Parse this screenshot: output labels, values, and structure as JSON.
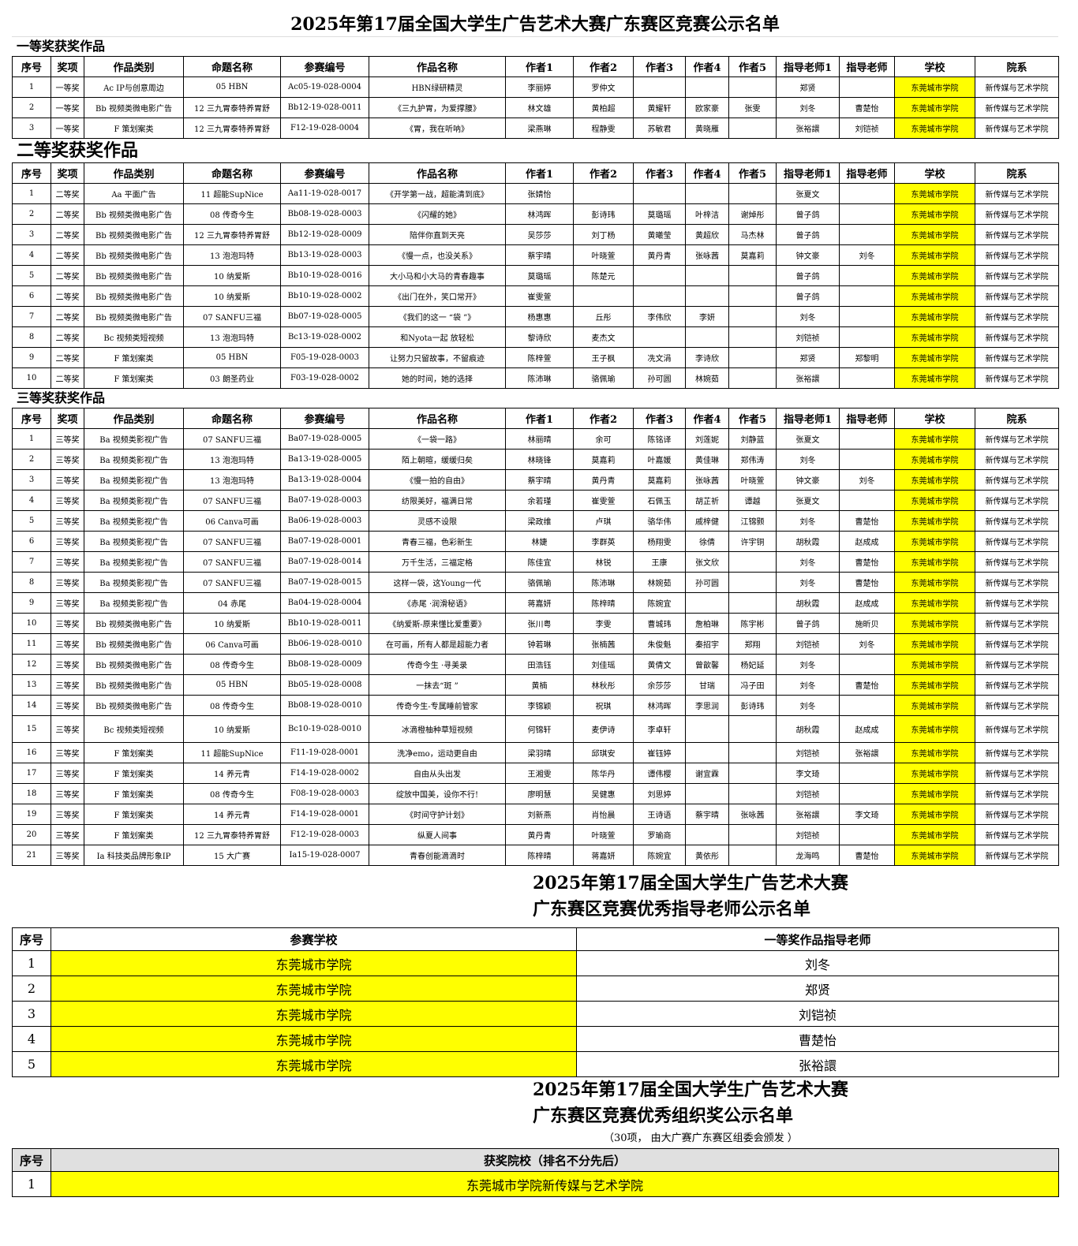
{
  "title": "2025年第17届全国大学生广告艺术大赛广东赛区竞赛公示名单",
  "columns": [
    "序号",
    "奖项",
    "作品类别",
    "命题名称",
    "参赛编号",
    "作品名称",
    "作者1",
    "作者2",
    "作者3",
    "作者4",
    "作者5",
    "指导老师1",
    "指导老师",
    "学校",
    "院系"
  ],
  "sections": [
    {
      "label": "一等奖获奖作品",
      "rows": [
        [
          1,
          "一等奖",
          "Ac IP与创意周边",
          "05 HBN",
          "Ac05-19-028-0004",
          "HBN绿研精灵",
          "李丽婷",
          "罗仲文",
          null,
          null,
          null,
          "郑贤",
          null,
          "东莞城市学院",
          "新传媒与艺术学院"
        ],
        [
          2,
          "一等奖",
          "Bb 视频类微电影广告",
          "12 三九胃泰特养胃舒",
          "Bb12-19-028-0011",
          "《三九护胃，为爱撑腰》",
          "林文雄",
          "黄柏超",
          "黄耀轩",
          "欧家豪",
          "张雯",
          "刘冬",
          "曹楚怡",
          "东莞城市学院",
          "新传媒与艺术学院"
        ],
        [
          3,
          "一等奖",
          "F 策划案类",
          "12 三九胃泰特养胃舒",
          "F12-19-028-0004",
          "《胃，我在听呐》",
          "梁燕琳",
          "程静雯",
          "苏敏君",
          "黄晓雁",
          null,
          "张裕譞",
          "刘铠祯",
          "东莞城市学院",
          "新传媒与艺术学院"
        ]
      ]
    },
    {
      "label": "二等奖获奖作品",
      "rows": [
        [
          1,
          "二等奖",
          "Aa 平面广告",
          "11 超能SupNice",
          "Aa11-19-028-0017",
          "《开学第一战，超能清到底》",
          "张婧怡",
          null,
          null,
          null,
          null,
          "张夏文",
          null,
          "东莞城市学院",
          "新传媒与艺术学院"
        ],
        [
          2,
          "二等奖",
          "Bb 视频类微电影广告",
          "08 传奇今生",
          "Bb08-19-028-0003",
          "《闪耀的她》",
          "林鸿晖",
          "彭诗玮",
          "莫璐瑶",
          "叶梓洁",
          "谢焯彤",
          "曾子鸽",
          null,
          "东莞城市学院",
          "新传媒与艺术学院"
        ],
        [
          3,
          "二等奖",
          "Bb 视频类微电影广告",
          "12 三九胃泰特养胃舒",
          "Bb12-19-028-0009",
          "陪伴你直到天亮",
          "吴莎莎",
          "刘丁杨",
          "黄曦莹",
          "黄超欣",
          "马杰林",
          "曾子鸽",
          null,
          "东莞城市学院",
          "新传媒与艺术学院"
        ],
        [
          4,
          "二等奖",
          "Bb 视频类微电影广告",
          "13 泡泡玛特",
          "Bb13-19-028-0003",
          "《慢一点，也没关系》",
          "蔡宇晴",
          "叶晓萱",
          "黄丹青",
          "张咏茜",
          "莫嘉莉",
          "钟文豪",
          "刘冬",
          "东莞城市学院",
          "新传媒与艺术学院"
        ],
        [
          5,
          "二等奖",
          "Bb 视频类微电影广告",
          "10 纳爱斯",
          "Bb10-19-028-0016",
          "大小马和小大马的青春趣事",
          "莫璐瑶",
          "陈楚元",
          null,
          null,
          null,
          "曾子鸽",
          null,
          "东莞城市学院",
          "新传媒与艺术学院"
        ],
        [
          6,
          "二等奖",
          "Bb 视频类微电影广告",
          "10 纳爱斯",
          "Bb10-19-028-0002",
          "《出门在外，笑口常开》",
          "崔雯萱",
          null,
          null,
          null,
          null,
          "曾子鸽",
          null,
          "东莞城市学院",
          "新传媒与艺术学院"
        ],
        [
          7,
          "二等奖",
          "Bb 视频类微电影广告",
          "07 SANFU三福",
          "Bb07-19-028-0005",
          "《我们的这一 “袋 ”》",
          "杨惠惠",
          "丘彤",
          "李伟欣",
          "李妍",
          null,
          "刘冬",
          null,
          "东莞城市学院",
          "新传媒与艺术学院"
        ],
        [
          8,
          "二等奖",
          "Bc 视频类短视频",
          "13 泡泡玛特",
          "Bc13-19-028-0002",
          "和Nyota一起 放轻松",
          "黎诗欣",
          "麦杰文",
          null,
          null,
          null,
          "刘铠祯",
          null,
          "东莞城市学院",
          "新传媒与艺术学院"
        ],
        [
          9,
          "二等奖",
          "F 策划案类",
          "05 HBN",
          "F05-19-028-0003",
          "让努力只留故事，不留痕迹",
          "陈梓萱",
          "王子枫",
          "冼文涓",
          "李诗欣",
          null,
          "郑贤",
          "郑黎明",
          "东莞城市学院",
          "新传媒与艺术学院"
        ],
        [
          10,
          "二等奖",
          "F 策划案类",
          "03 朗圣药业",
          "F03-19-028-0002",
          "她的时间，她的选择",
          "陈沛琳",
          "骆佩瑜",
          "孙可圆",
          "林婉茹",
          null,
          "张裕譞",
          null,
          "东莞城市学院",
          "新传媒与艺术学院"
        ]
      ]
    },
    {
      "label": "三等奖获奖作品",
      "rows": [
        [
          1,
          "三等奖",
          "Ba 视频类影视广告",
          "07 SANFU三福",
          "Ba07-19-028-0005",
          "《一袋一路》",
          "林丽晴",
          "余可",
          "陈铭译",
          "刘莲妮",
          "刘静蓝",
          "张夏文",
          null,
          "东莞城市学院",
          "新传媒与艺术学院"
        ],
        [
          2,
          "三等奖",
          "Ba 视频类影视广告",
          "13 泡泡玛特",
          "Ba13-19-028-0005",
          "陌上朝暄，缓缓归矣",
          "林晓锋",
          "莫嘉莉",
          "叶嘉媛",
          "黄佳琳",
          "郑伟涛",
          "刘冬",
          null,
          "东莞城市学院",
          "新传媒与艺术学院"
        ],
        [
          3,
          "三等奖",
          "Ba 视频类影视广告",
          "13 泡泡玛特",
          "Ba13-19-028-0004",
          "《慢一拍的自由》",
          "蔡宇晴",
          "黄丹青",
          "莫嘉莉",
          "张咏茜",
          "叶晓萱",
          "钟文豪",
          "刘冬",
          "东莞城市学院",
          "新传媒与艺术学院"
        ],
        [
          4,
          "三等奖",
          "Ba 视频类影视广告",
          "07 SANFU三福",
          "Ba07-19-028-0003",
          "纺限美好，福满日常",
          "余若瑾",
          "崔雯萱",
          "石佩玉",
          "胡芷祈",
          "谭越",
          "张夏文",
          null,
          "东莞城市学院",
          "新传媒与艺术学院"
        ],
        [
          5,
          "三等奖",
          "Ba 视频类影视广告",
          "06 Canva可画",
          "Ba06-19-028-0003",
          "灵感不设限",
          "梁政维",
          "卢琪",
          "骆华伟",
          "戚梓健",
          "江锦颢",
          "刘冬",
          "曹楚怡",
          "东莞城市学院",
          "新传媒与艺术学院"
        ],
        [
          6,
          "三等奖",
          "Ba 视频类影视广告",
          "07 SANFU三福",
          "Ba07-19-028-0001",
          "青春三福，色彩新生",
          "林婕",
          "李群英",
          "杨翔雯",
          "徐倩",
          "许宇铜",
          "胡秋霞",
          "赵成成",
          "东莞城市学院",
          "新传媒与艺术学院"
        ],
        [
          7,
          "三等奖",
          "Ba 视频类影视广告",
          "07 SANFU三福",
          "Ba07-19-028-0014",
          "万千生活，三福定格",
          "陈佳宜",
          "林锐",
          "王康",
          "张文欣",
          null,
          "刘冬",
          "曹楚怡",
          "东莞城市学院",
          "新传媒与艺术学院"
        ],
        [
          8,
          "三等奖",
          "Ba 视频类影视广告",
          "07 SANFU三福",
          "Ba07-19-028-0015",
          "这样一袋，这Young一代",
          "骆佩瑜",
          "陈沛琳",
          "林婉茹",
          "孙可圆",
          null,
          "刘冬",
          "曹楚怡",
          "东莞城市学院",
          "新传媒与艺术学院"
        ],
        [
          9,
          "三等奖",
          "Ba 视频类影视广告",
          "04 赤尾",
          "Ba04-19-028-0004",
          "《赤尾 ·润滑秘语》",
          "蒋嘉妍",
          "陈梓晴",
          "陈婉宜",
          null,
          null,
          "胡秋霞",
          "赵成成",
          "东莞城市学院",
          "新传媒与艺术学院"
        ],
        [
          10,
          "三等奖",
          "Bb 视频类微电影广告",
          "10 纳爱斯",
          "Bb10-19-028-0011",
          "《纳爱斯-原来懂比爱重要》",
          "张川粤",
          "李雯",
          "曹城玮",
          "詹柏琳",
          "陈宇彬",
          "曾子鸽",
          "施昕贝",
          "东莞城市学院",
          "新传媒与艺术学院"
        ],
        [
          11,
          "三等奖",
          "Bb 视频类微电影广告",
          "06 Canva可画",
          "Bb06-19-028-0010",
          "在可画，所有人都是超能力者",
          "钟若琳",
          "张楠茜",
          "朱俊魁",
          "秦招宇",
          "郑翔",
          "刘铠祯",
          "刘冬",
          "东莞城市学院",
          "新传媒与艺术学院"
        ],
        [
          12,
          "三等奖",
          "Bb 视频类微电影广告",
          "08 传奇今生",
          "Bb08-19-028-0009",
          "传奇今生 ·寻美录",
          "田浩钰",
          "刘佳瑶",
          "黄倩文",
          "曾歆馨",
          "杨妃延",
          "刘冬",
          null,
          "东莞城市学院",
          "新传媒与艺术学院"
        ],
        [
          13,
          "三等奖",
          "Bb 视频类微电影广告",
          "05 HBN",
          "Bb05-19-028-0008",
          "一抹去“斑 ”",
          "黄楠",
          "林秋彤",
          "余莎莎",
          "甘瑞",
          "冯子田",
          "刘冬",
          "曹楚怡",
          "东莞城市学院",
          "新传媒与艺术学院"
        ],
        [
          14,
          "三等奖",
          "Bb 视频类微电影广告",
          "08 传奇今生",
          "Bb08-19-028-0010",
          "传奇今生-专属睡前管家",
          "李锦颖",
          "祝琪",
          "林鸿晖",
          "李思润",
          "彭诗玮",
          "刘冬",
          null,
          "东莞城市学院",
          "新传媒与艺术学院"
        ],
        [
          15,
          "三等奖",
          "Bc 视频类短视频",
          "10 纳爱斯",
          "Bc10-19-028-0010",
          "冰滴橙柚种草短视频",
          "何锦轩",
          "麦伊诗",
          "李卓轩",
          null,
          null,
          "胡秋霞",
          "赵成成",
          "东莞城市学院",
          "新传媒与艺术学院"
        ],
        [
          16,
          "三等奖",
          "F 策划案类",
          "11 超能SupNice",
          "F11-19-028-0001",
          "洗净emo，运动更自由",
          "梁羽晴",
          "邱琪安",
          "崔钰婷",
          null,
          null,
          "刘铠祯",
          "张裕譞",
          "东莞城市学院",
          "新传媒与艺术学院"
        ],
        [
          17,
          "三等奖",
          "F 策划案类",
          "14 养元青",
          "F14-19-028-0002",
          "自由从头出发",
          "王湘雯",
          "陈华丹",
          "谭伟樱",
          "谢宜霖",
          null,
          "李文琦",
          null,
          "东莞城市学院",
          "新传媒与艺术学院"
        ],
        [
          18,
          "三等奖",
          "F 策划案类",
          "08 传奇今生",
          "F08-19-028-0003",
          "绽放中国美，设你不行!",
          "廖明慧",
          "吴健惠",
          "刘思婷",
          null,
          null,
          "刘铠祯",
          null,
          "东莞城市学院",
          "新传媒与艺术学院"
        ],
        [
          19,
          "三等奖",
          "F 策划案类",
          "14 养元青",
          "F14-19-028-0001",
          "《时间守护计划》",
          "刘新燕",
          "肖怡晨",
          "王诗语",
          "蔡宇晴",
          "张咏茜",
          "张裕譞",
          "李文琦",
          "东莞城市学院",
          "新传媒与艺术学院"
        ],
        [
          20,
          "三等奖",
          "F 策划案类",
          "12 三九胃泰特养胃舒",
          "F12-19-028-0003",
          "纵夏人间事",
          "黄丹青",
          "叶晓萱",
          "罗瑜商",
          null,
          null,
          "刘铠祯",
          null,
          "东莞城市学院",
          "新传媒与艺术学院"
        ],
        [
          21,
          "三等奖",
          "Ia 科技类品牌形象IP",
          "15 大广赛",
          "Ia15-19-028-0007",
          "青春创能滴滴时",
          "陈梓晴",
          "蒋嘉妍",
          "陈婉宜",
          "黄依彤",
          null,
          "龙海鸣",
          "曹楚怡",
          "东莞城市学院",
          "新传媒与艺术学院"
        ]
      ]
    }
  ],
  "teachers": {
    "title": [
      "2025年第17届全国大学生广告艺术大赛",
      "广东赛区竞赛优秀指导老师公示名单"
    ],
    "columns": [
      "序号",
      "参赛学校",
      "一等奖作品指导老师"
    ],
    "rows": [
      [
        1,
        "东莞城市学院",
        "刘冬"
      ],
      [
        2,
        "东莞城市学院",
        "郑贤"
      ],
      [
        3,
        "东莞城市学院",
        "刘铠祯"
      ],
      [
        4,
        "东莞城市学院",
        "曹楚怡"
      ],
      [
        5,
        "东莞城市学院",
        "张裕譞"
      ]
    ]
  },
  "organizations": {
    "title": [
      "2025年第17届全国大学生广告艺术大赛",
      "广东赛区竞赛优秀组织奖公示名单"
    ],
    "note": "（30项， 由大广赛广东赛区组委会颁发 ）",
    "columns": [
      "序号",
      "获奖院校（排名不分先后）"
    ],
    "rows": [
      [
        1,
        "东莞城市学院新传媒与艺术学院"
      ]
    ]
  }
}
